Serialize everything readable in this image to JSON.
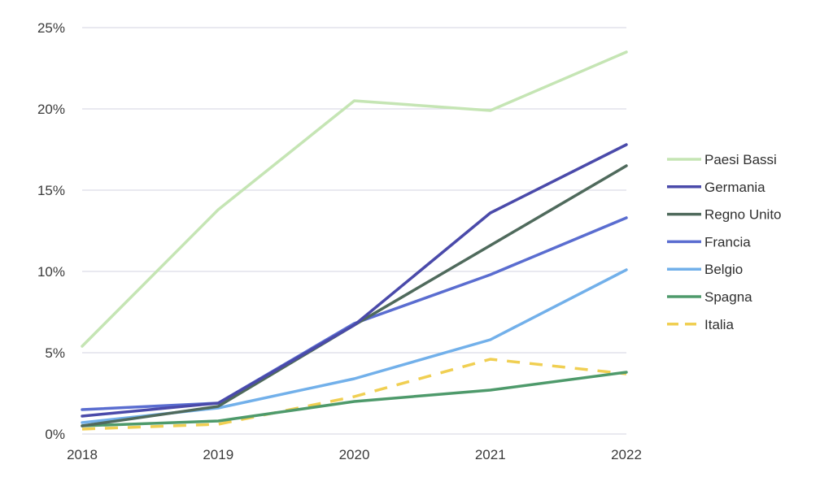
{
  "chart_data": {
    "type": "line",
    "x": [
      "2018",
      "2019",
      "2020",
      "2021",
      "2022"
    ],
    "yticks": [
      "0%",
      "5%",
      "10%",
      "15%",
      "20%",
      "25%"
    ],
    "ylim": [
      0,
      25
    ],
    "grid": "horizontal",
    "legend_position": "right",
    "series": [
      {
        "name": "Paesi Bassi",
        "color": "#c5e5b4",
        "dash": false,
        "values": [
          5.4,
          13.8,
          20.5,
          19.9,
          23.5
        ]
      },
      {
        "name": "Germania",
        "color": "#4a4aaa",
        "dash": false,
        "values": [
          1.1,
          1.9,
          6.7,
          13.6,
          17.8
        ]
      },
      {
        "name": "Regno Unito",
        "color": "#4f6a5c",
        "dash": false,
        "values": [
          0.5,
          1.7,
          6.7,
          11.6,
          16.5
        ]
      },
      {
        "name": "Francia",
        "color": "#5a6dd0",
        "dash": false,
        "values": [
          1.5,
          1.9,
          6.8,
          9.8,
          13.3
        ]
      },
      {
        "name": "Belgio",
        "color": "#72b0ea",
        "dash": false,
        "values": [
          0.7,
          1.6,
          3.4,
          5.8,
          10.1
        ]
      },
      {
        "name": "Spagna",
        "color": "#4e9a6b",
        "dash": false,
        "values": [
          0.5,
          0.8,
          2.0,
          2.7,
          3.8
        ]
      },
      {
        "name": "Italia",
        "color": "#f0cf52",
        "dash": true,
        "values": [
          0.3,
          0.6,
          2.3,
          4.6,
          3.7
        ]
      }
    ]
  }
}
